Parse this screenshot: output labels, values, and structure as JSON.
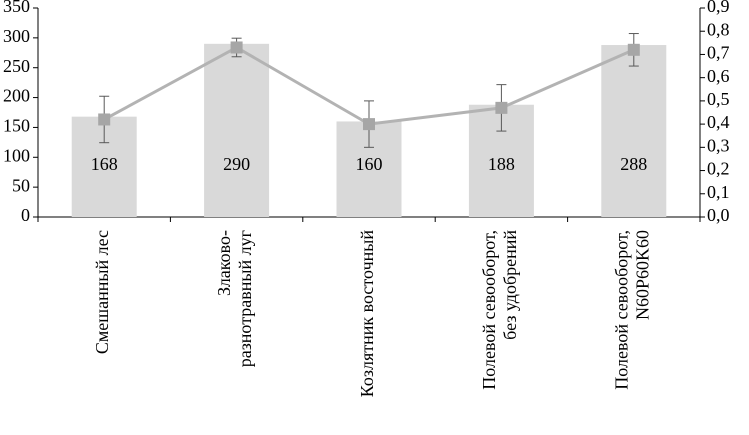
{
  "chart_data": {
    "type": "combo",
    "categories": [
      [
        "Смешанный лес"
      ],
      [
        "Злаково-",
        "разнотравный луг"
      ],
      [
        "Козлятник восточный"
      ],
      [
        "Полевой севооборот,",
        "без удобрений"
      ],
      [
        "Полевой севооборот,",
        "N60P60K60"
      ]
    ],
    "series": [
      {
        "type": "bar",
        "color": "#d9d9d9",
        "values": [
          168,
          290,
          160,
          188,
          288
        ]
      },
      {
        "type": "line",
        "axis": "y2",
        "color": "#b3b3b3",
        "marker_color": "#a6a6a6",
        "values": [
          0.42,
          0.73,
          0.4,
          0.47,
          0.72
        ],
        "errors": [
          0.1,
          0.04,
          0.1,
          0.1,
          0.07
        ]
      }
    ],
    "ylim": [
      0,
      350
    ],
    "yticks": [
      0,
      50,
      100,
      150,
      200,
      250,
      300,
      350
    ],
    "y2lim": [
      0,
      0.9
    ],
    "y2ticks": [
      {
        "value": 0,
        "label": "0,0"
      },
      {
        "value": 0.1,
        "label": "0,1"
      },
      {
        "value": 0.2,
        "label": "0,2"
      },
      {
        "value": 0.3,
        "label": "0,3"
      },
      {
        "value": 0.4,
        "label": "0,4"
      },
      {
        "value": 0.5,
        "label": "0,5"
      },
      {
        "value": 0.6,
        "label": "0,6"
      },
      {
        "value": 0.7,
        "label": "0,7"
      },
      {
        "value": 0.8,
        "label": "0,8"
      },
      {
        "value": 0.9,
        "label": "0,9"
      }
    ],
    "grid": false
  }
}
